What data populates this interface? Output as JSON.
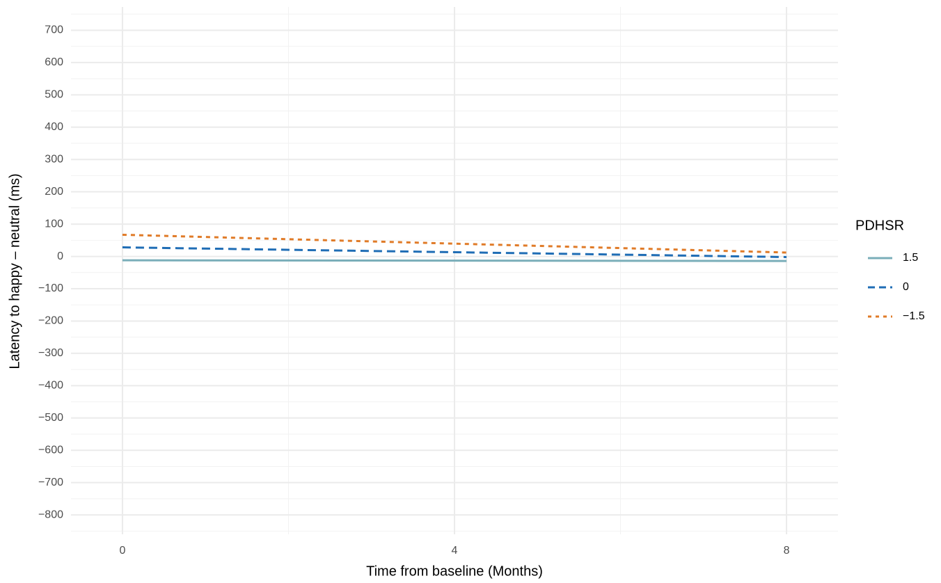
{
  "chart_data": {
    "type": "line",
    "x_label": "Time from baseline (Months)",
    "y_label": "Latency to happy – neutral (ms)",
    "legend_title": "PDHSR",
    "x": [
      0,
      8
    ],
    "series": [
      {
        "name": "1.5",
        "color": "#7aaeb9",
        "linestyle": "solid",
        "values": [
          -12,
          -14
        ]
      },
      {
        "name": "0",
        "color": "#1f6db5",
        "linestyle": "dashed",
        "values": [
          28,
          -2
        ]
      },
      {
        "name": "−1.5",
        "color": "#e07b28",
        "linestyle": "dotted",
        "values": [
          67,
          12
        ]
      }
    ],
    "xlim": [
      -0.62,
      8.62
    ],
    "xticks": [
      0,
      4,
      8
    ],
    "minor_xticks": [
      2,
      6
    ],
    "ylim": [
      -860,
      772
    ],
    "yticks": [
      {
        "value": 700,
        "label": "700"
      },
      {
        "value": 600,
        "label": "600"
      },
      {
        "value": 500,
        "label": "500"
      },
      {
        "value": 400,
        "label": "400"
      },
      {
        "value": 300,
        "label": "300"
      },
      {
        "value": 200,
        "label": "200"
      },
      {
        "value": 100,
        "label": "100"
      },
      0,
      {
        "value": -100,
        "label": "−100"
      },
      {
        "value": -200,
        "label": "−200"
      },
      {
        "value": -300,
        "label": "−300"
      },
      {
        "value": -400,
        "label": "−400"
      },
      {
        "value": -500,
        "label": "−500"
      },
      {
        "value": -600,
        "label": "−600"
      },
      {
        "value": -700,
        "label": "−700"
      },
      {
        "value": -800,
        "label": "−800"
      }
    ],
    "minor_yticks": [
      750,
      650,
      550,
      450,
      350,
      250,
      150,
      50,
      -50,
      -150,
      -250,
      -350,
      -450,
      -550,
      -650,
      -750,
      -850
    ],
    "grid": true,
    "legend": "right"
  }
}
